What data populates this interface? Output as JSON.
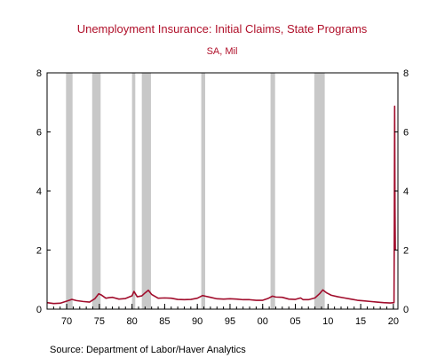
{
  "chart_data": {
    "type": "line",
    "title": "Unemployment Insurance: Initial Claims, State Programs",
    "subtitle": "SA, Mil",
    "xlabel": "",
    "ylabel": "",
    "source": "Source:  Department of Labor/Haver Analytics",
    "xlim": [
      1967,
      2020.7
    ],
    "ylim": [
      0,
      8
    ],
    "x_ticks": [
      "70",
      "75",
      "80",
      "85",
      "90",
      "95",
      "00",
      "05",
      "10",
      "15",
      "20"
    ],
    "y_ticks": [
      "0",
      "2",
      "4",
      "6",
      "8"
    ],
    "grid": false,
    "legend": "none",
    "recessions": [
      [
        1969.9,
        1970.9
      ],
      [
        1973.9,
        1975.2
      ],
      [
        1980.0,
        1980.5
      ],
      [
        1981.5,
        1982.9
      ],
      [
        1990.6,
        1991.2
      ],
      [
        2001.2,
        2001.9
      ],
      [
        2007.9,
        2009.5
      ]
    ],
    "series": [
      {
        "values": [
          [
            1967.0,
            0.22
          ],
          [
            1968.0,
            0.19
          ],
          [
            1969.0,
            0.2
          ],
          [
            1970.0,
            0.27
          ],
          [
            1970.8,
            0.33
          ],
          [
            1971.5,
            0.29
          ],
          [
            1972.5,
            0.26
          ],
          [
            1973.5,
            0.24
          ],
          [
            1974.3,
            0.35
          ],
          [
            1974.9,
            0.52
          ],
          [
            1975.3,
            0.48
          ],
          [
            1976.0,
            0.37
          ],
          [
            1976.5,
            0.39
          ],
          [
            1977.0,
            0.4
          ],
          [
            1978.0,
            0.34
          ],
          [
            1979.0,
            0.36
          ],
          [
            1980.0,
            0.45
          ],
          [
            1980.3,
            0.6
          ],
          [
            1980.8,
            0.42
          ],
          [
            1981.5,
            0.45
          ],
          [
            1982.0,
            0.55
          ],
          [
            1982.5,
            0.64
          ],
          [
            1983.0,
            0.5
          ],
          [
            1984.0,
            0.37
          ],
          [
            1985.0,
            0.38
          ],
          [
            1986.0,
            0.37
          ],
          [
            1987.0,
            0.33
          ],
          [
            1988.0,
            0.32
          ],
          [
            1989.0,
            0.33
          ],
          [
            1990.0,
            0.37
          ],
          [
            1990.8,
            0.46
          ],
          [
            1991.2,
            0.44
          ],
          [
            1992.0,
            0.4
          ],
          [
            1993.0,
            0.35
          ],
          [
            1994.0,
            0.34
          ],
          [
            1995.0,
            0.35
          ],
          [
            1996.0,
            0.34
          ],
          [
            1997.0,
            0.32
          ],
          [
            1998.0,
            0.32
          ],
          [
            1999.0,
            0.3
          ],
          [
            2000.0,
            0.3
          ],
          [
            2000.8,
            0.36
          ],
          [
            2001.5,
            0.44
          ],
          [
            2002.0,
            0.41
          ],
          [
            2003.0,
            0.4
          ],
          [
            2004.0,
            0.34
          ],
          [
            2005.0,
            0.33
          ],
          [
            2005.8,
            0.38
          ],
          [
            2006.2,
            0.32
          ],
          [
            2007.0,
            0.32
          ],
          [
            2008.0,
            0.38
          ],
          [
            2008.7,
            0.52
          ],
          [
            2009.2,
            0.65
          ],
          [
            2009.8,
            0.55
          ],
          [
            2010.5,
            0.47
          ],
          [
            2011.5,
            0.42
          ],
          [
            2012.5,
            0.38
          ],
          [
            2013.5,
            0.34
          ],
          [
            2014.5,
            0.3
          ],
          [
            2015.5,
            0.28
          ],
          [
            2016.5,
            0.26
          ],
          [
            2017.5,
            0.24
          ],
          [
            2018.5,
            0.22
          ],
          [
            2019.5,
            0.21
          ],
          [
            2020.1,
            0.22
          ],
          [
            2020.15,
            2.9
          ],
          [
            2020.2,
            6.87
          ],
          [
            2020.25,
            3.5
          ],
          [
            2020.3,
            2.0
          ]
        ]
      }
    ],
    "colors": {
      "line": "#a10d2c",
      "recession": "#c8c8c8",
      "title": "#b0102a",
      "axis": "#000000"
    }
  }
}
